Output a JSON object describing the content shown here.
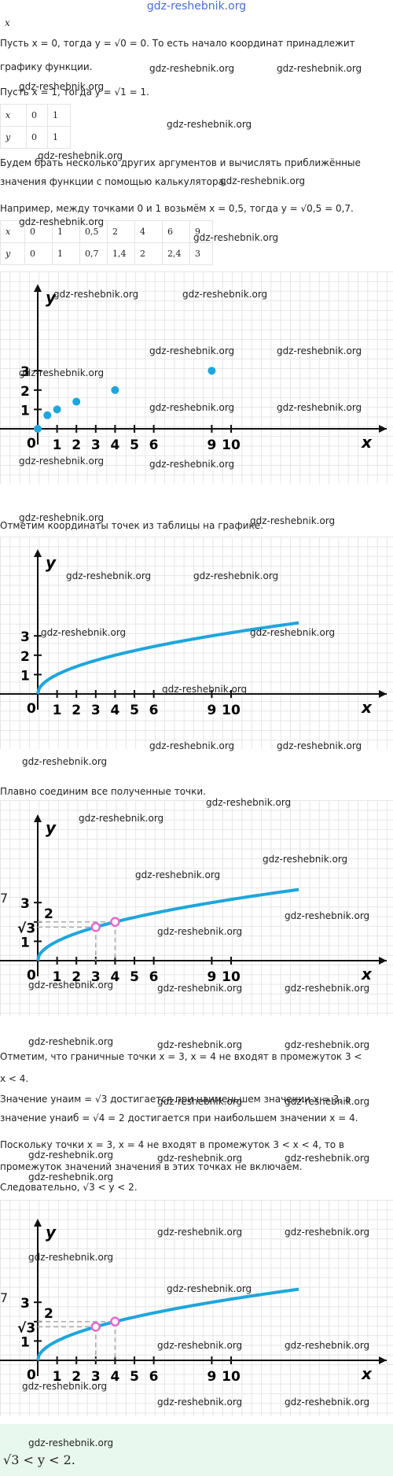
{
  "site_title": "gdz-reshebnik.org",
  "watermark": "gdz-reshebnik.org",
  "top_label": "x",
  "para1": "Пусть x = 0, тогда y = √0 = 0. То есть начало координат принадлежит",
  "para1b": "графику функции.",
  "para2": "Пусть x = 1, тогда y = √1 = 1.",
  "table1": {
    "rows": [
      [
        "x",
        "0",
        "1"
      ],
      [
        "y",
        "0",
        "1"
      ]
    ]
  },
  "para3": "Будем брать несколько других аргументов и вычислять приближённые",
  "para3b": "значения функции с помощью калькулятора.",
  "para4": "Например, между точками 0 и 1 возьмём x = 0,5, тогда y = √0,5 = 0,7.",
  "table2": {
    "rows": [
      [
        "x",
        "0",
        "1",
        "0,5",
        "2",
        "4",
        "6",
        "9"
      ],
      [
        "y",
        "0",
        "1",
        "0,7",
        "1,4",
        "2",
        "2,4",
        "3"
      ]
    ]
  },
  "graph_axis": {
    "x_label": "x",
    "y_label": "y",
    "origin": "0",
    "x_ticks": [
      "1",
      "2",
      "3",
      "4",
      "5",
      "6",
      "9",
      "10"
    ],
    "y_ticks": [
      "1",
      "2",
      "3"
    ]
  },
  "chart_data": [
    {
      "type": "scatter",
      "x": [
        0,
        0.5,
        1,
        2,
        4,
        9
      ],
      "y": [
        0,
        0.7,
        1,
        1.4,
        2,
        3
      ]
    },
    {
      "type": "line",
      "function": "y = sqrt(x)",
      "xlim": [
        0,
        13.5
      ]
    },
    {
      "type": "line",
      "function": "y = sqrt(x)",
      "highlight_x": [
        3,
        4
      ],
      "highlight_labels": [
        "√3",
        "2"
      ]
    },
    {
      "type": "line",
      "function": "y = sqrt(x)",
      "highlight_x": [
        3,
        4
      ],
      "highlight_labels": [
        "√3",
        "2"
      ]
    }
  ],
  "para5": "Отметим координаты точек из таблицы на графике.",
  "para6": "Плавно соединим все полученные точки.",
  "side_digit": "7",
  "sqrt3_label": "√3",
  "two_label": "2",
  "para7": "Отметим, что граничные точки x = 3, x = 4 не входят в промежуток 3 <",
  "para7b": "x < 4.",
  "para8": "Значение yнаим = √3 достигается при наименьшем значении x = 3, а",
  "para8b": "значение yнаиб = √4 = 2 достигается при наибольшем значении x = 4.",
  "para9": "Поскольку точки x = 3, x = 4 не входят в промежуток 3 < x < 4, то в",
  "para9b": "промежуток значений значения в этих точках не включаем.",
  "para10": "Следовательно, √3 < y < 2.",
  "answer": "√3 < y < 2."
}
